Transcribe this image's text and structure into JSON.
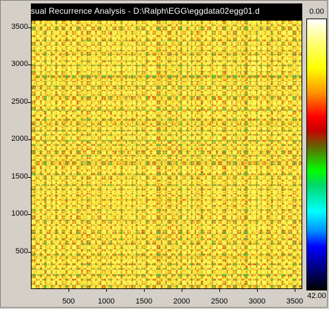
{
  "window": {
    "title": "sual Recurrence Analysis  -  D:\\Ralph\\EGG\\eggdata02egg01.d"
  },
  "plot": {
    "type": "recurrence-plot",
    "x_axis": {
      "min": 0,
      "max": 3600,
      "ticks": [
        "500",
        "1000",
        "1500",
        "2000",
        "2500",
        "3000",
        "3500"
      ]
    },
    "y_axis": {
      "min": 0,
      "max": 3600,
      "ticks": [
        "3500",
        "3000",
        "2500",
        "2000",
        "1500",
        "1000",
        "500"
      ]
    }
  },
  "colorbar": {
    "top_label": "0.00",
    "bottom_label": "42.00",
    "colors": [
      "#ffffff",
      "#ffff00",
      "#ff9600",
      "#ff0000",
      "#00ff00",
      "#00ffff",
      "#0000ff",
      "#000000"
    ]
  },
  "chart_data": {
    "type": "heatmap",
    "title": "sual Recurrence Analysis  -  D:\\Ralph\\EGG\\eggdata02egg01.d",
    "xlabel": "",
    "ylabel": "",
    "x_range": [
      0,
      3600
    ],
    "y_range": [
      0,
      3600
    ],
    "x_ticks": [
      500,
      1000,
      1500,
      2000,
      2500,
      3000,
      3500
    ],
    "y_ticks": [
      500,
      1000,
      1500,
      2000,
      2500,
      3000,
      3500
    ],
    "color_scale": {
      "min": 0.0,
      "max": 42.0,
      "low_color": "#ffffff",
      "high_color": "#000000"
    },
    "dominant_band": {
      "from": 0.0,
      "to": 12.0,
      "colors": [
        "#ffff00",
        "#ff9600",
        "#ff0000"
      ]
    }
  }
}
